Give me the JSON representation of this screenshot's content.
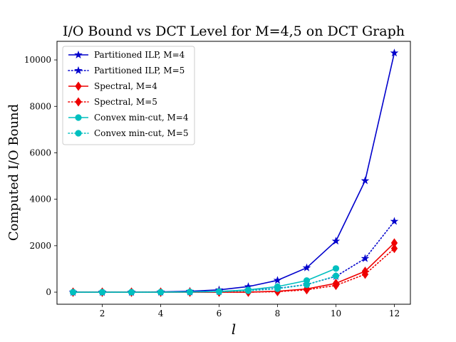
{
  "chart_data": {
    "type": "line",
    "title": "I/O Bound vs DCT Level for M=4,5 on DCT Graph",
    "xlabel": "l",
    "ylabel": "Computed I/O Bound",
    "xlim": [
      0.45,
      12.55
    ],
    "ylim": [
      -520,
      10800
    ],
    "xticks": [
      2,
      4,
      6,
      8,
      10,
      12
    ],
    "yticks": [
      0,
      2000,
      4000,
      6000,
      8000,
      10000
    ],
    "grid": false,
    "legend_position": "top-left",
    "series": [
      {
        "name": "Partitioned ILP, M=4",
        "color": "#0000cc",
        "linestyle": "solid",
        "marker": "star",
        "x": [
          1,
          2,
          3,
          4,
          5,
          6,
          7,
          8,
          9,
          10,
          11,
          12
        ],
        "y": [
          0,
          0,
          0,
          10,
          40,
          100,
          240,
          510,
          1050,
          2200,
          4800,
          10300
        ]
      },
      {
        "name": "Partitioned ILP, M=5",
        "color": "#0000cc",
        "linestyle": "dotted",
        "marker": "star",
        "x": [
          1,
          2,
          3,
          4,
          5,
          6,
          7,
          8,
          9,
          10,
          11,
          12
        ],
        "y": [
          0,
          0,
          0,
          5,
          10,
          30,
          80,
          160,
          330,
          680,
          1450,
          3050
        ]
      },
      {
        "name": "Spectral, M=4",
        "color": "#ee0000",
        "linestyle": "solid",
        "marker": "diamond",
        "x": [
          1,
          2,
          3,
          4,
          5,
          6,
          7,
          8,
          9,
          10,
          11,
          12
        ],
        "y": [
          0,
          0,
          0,
          0,
          0,
          0,
          0,
          40,
          140,
          380,
          900,
          2120
        ]
      },
      {
        "name": "Spectral, M=5",
        "color": "#ee0000",
        "linestyle": "dotted",
        "marker": "diamond",
        "x": [
          1,
          2,
          3,
          4,
          5,
          6,
          7,
          8,
          9,
          10,
          11,
          12
        ],
        "y": [
          0,
          0,
          0,
          0,
          0,
          0,
          0,
          20,
          100,
          290,
          770,
          1880
        ]
      },
      {
        "name": "Convex min-cut, M=4",
        "color": "#00bfbf",
        "linestyle": "solid",
        "marker": "circle",
        "x": [
          1,
          2,
          3,
          4,
          5,
          6,
          7,
          8,
          9,
          10
        ],
        "y": [
          0,
          0,
          0,
          0,
          10,
          30,
          100,
          240,
          500,
          1020
        ]
      },
      {
        "name": "Convex min-cut, M=5",
        "color": "#00bfbf",
        "linestyle": "dotted",
        "marker": "circle",
        "x": [
          1,
          2,
          3,
          4,
          5,
          6,
          7,
          8,
          9,
          10
        ],
        "y": [
          0,
          0,
          0,
          0,
          5,
          20,
          60,
          150,
          320,
          700
        ]
      }
    ]
  }
}
